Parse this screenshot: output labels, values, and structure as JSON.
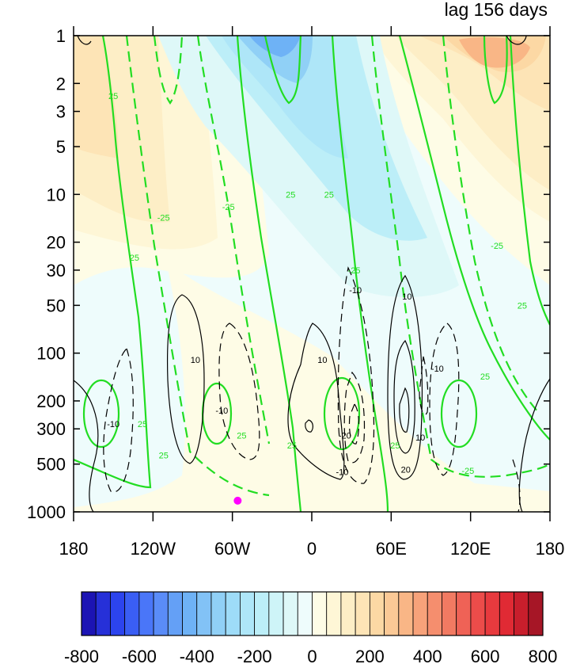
{
  "chart_data": {
    "type": "heatmap",
    "title": "lag 156 days",
    "xlabel": "",
    "ylabel": "",
    "x_axis": {
      "range": [
        -180,
        180
      ],
      "ticks": [
        -180,
        -120,
        -60,
        0,
        60,
        120,
        180
      ],
      "tick_labels": [
        "180",
        "120W",
        "60W",
        "0",
        "60E",
        "120E",
        "180"
      ]
    },
    "y_axis": {
      "scale": "log",
      "reversed": true,
      "range": [
        1,
        1000
      ],
      "ticks": [
        1,
        2,
        3,
        5,
        10,
        20,
        30,
        50,
        100,
        200,
        300,
        500,
        1000
      ],
      "tick_labels": [
        "1",
        "2",
        "3",
        "5",
        "10",
        "20",
        "30",
        "50",
        "100",
        "200",
        "300",
        "500",
        "1000"
      ]
    },
    "colorbar": {
      "orientation": "horizontal",
      "levels": [
        -800,
        -750,
        -700,
        -650,
        -600,
        -550,
        -500,
        -450,
        -400,
        -350,
        -300,
        -250,
        -200,
        -150,
        -100,
        -50,
        0,
        50,
        100,
        150,
        200,
        250,
        300,
        350,
        400,
        450,
        500,
        550,
        600,
        650,
        700,
        750,
        800
      ],
      "tick_labels": [
        "-800",
        "-600",
        "-400",
        "-200",
        "0",
        "200",
        "400",
        "600",
        "800"
      ],
      "colors": [
        "#1c14b4",
        "#2630d8",
        "#2c44ee",
        "#3a5ef4",
        "#4a76f8",
        "#5a8cf8",
        "#64a0f6",
        "#6eb2f6",
        "#82c2f6",
        "#90d0f6",
        "#9edcf8",
        "#aee6f8",
        "#bceef8",
        "#cef4f8",
        "#def8f8",
        "#eefcfc",
        "#fefce6",
        "#fef6d6",
        "#fdeec6",
        "#fde4b6",
        "#fcd8a4",
        "#fbc996",
        "#f9b686",
        "#f7a27a",
        "#f58e6e",
        "#f27a62",
        "#ef6256",
        "#ec4c4a",
        "#e83a3e",
        "#e02a34",
        "#c81e2c",
        "#a61626"
      ]
    },
    "shading_regions": [
      {
        "region": "upper-left",
        "sign": "positive",
        "peak": 200
      },
      {
        "region": "upper-center",
        "sign": "negative",
        "peak": -250
      },
      {
        "region": "upper-right",
        "sign": "positive",
        "peak": 350
      },
      {
        "region": "lower-center",
        "sign": "positive",
        "peak": 100
      },
      {
        "region": "lower-left",
        "sign": "negative",
        "peak": -50
      }
    ],
    "contour_sets": [
      {
        "color": "#22dd22",
        "labels": [
          "25",
          "-25"
        ],
        "solid": "positive",
        "dashed": "negative"
      },
      {
        "color": "#000000",
        "labels": [
          "10",
          "-10",
          "20",
          "-20"
        ],
        "solid": "positive",
        "dashed": "negative"
      }
    ],
    "marker": {
      "lon": -56,
      "pressure": 850,
      "color": "#ff00ff"
    },
    "contour_labels": [
      {
        "text": "-25",
        "lon": -112,
        "p": 14,
        "color": "#22dd22"
      },
      {
        "text": "25",
        "lon": -134,
        "p": 25,
        "color": "#22dd22"
      },
      {
        "text": "-25",
        "lon": -63,
        "p": 12,
        "color": "#22dd22"
      },
      {
        "text": "25",
        "lon": -150,
        "p": 2.4,
        "color": "#22dd22"
      },
      {
        "text": "25",
        "lon": -16,
        "p": 10,
        "color": "#22dd22"
      },
      {
        "text": "25",
        "lon": 13,
        "p": 10,
        "color": "#22dd22"
      },
      {
        "text": "-25",
        "lon": 32,
        "p": 30,
        "color": "#22dd22"
      },
      {
        "text": "-25",
        "lon": 140,
        "p": 21,
        "color": "#22dd22"
      },
      {
        "text": "25",
        "lon": 159,
        "p": 50,
        "color": "#22dd22"
      },
      {
        "text": "25",
        "lon": 131,
        "p": 140,
        "color": "#22dd22"
      },
      {
        "text": "25",
        "lon": 63,
        "p": 380,
        "color": "#22dd22"
      },
      {
        "text": "25",
        "lon": -53,
        "p": 330,
        "color": "#22dd22"
      },
      {
        "text": "25",
        "lon": -128,
        "p": 280,
        "color": "#22dd22"
      },
      {
        "text": "25",
        "lon": -15,
        "p": 380,
        "color": "#22dd22"
      },
      {
        "text": "-25",
        "lon": 118,
        "p": 550,
        "color": "#22dd22"
      },
      {
        "text": "25",
        "lon": -112,
        "p": 440,
        "color": "#22dd22"
      },
      {
        "text": "-10",
        "lon": -150,
        "p": 280,
        "color": "#000000"
      },
      {
        "text": "10",
        "lon": -88,
        "p": 110,
        "color": "#000000"
      },
      {
        "text": "-10",
        "lon": -68,
        "p": 230,
        "color": "#000000"
      },
      {
        "text": "10",
        "lon": 8,
        "p": 110,
        "color": "#000000"
      },
      {
        "text": "-10",
        "lon": 33,
        "p": 40,
        "color": "#000000"
      },
      {
        "text": "10",
        "lon": 72,
        "p": 44,
        "color": "#000000"
      },
      {
        "text": "-10",
        "lon": 95,
        "p": 125,
        "color": "#000000"
      },
      {
        "text": "-20",
        "lon": 25,
        "p": 330,
        "color": "#000000"
      },
      {
        "text": "-10",
        "lon": 23,
        "p": 560,
        "color": "#000000"
      },
      {
        "text": "20",
        "lon": 71,
        "p": 540,
        "color": "#000000"
      },
      {
        "text": "10",
        "lon": 82,
        "p": 340,
        "color": "#000000"
      }
    ]
  }
}
